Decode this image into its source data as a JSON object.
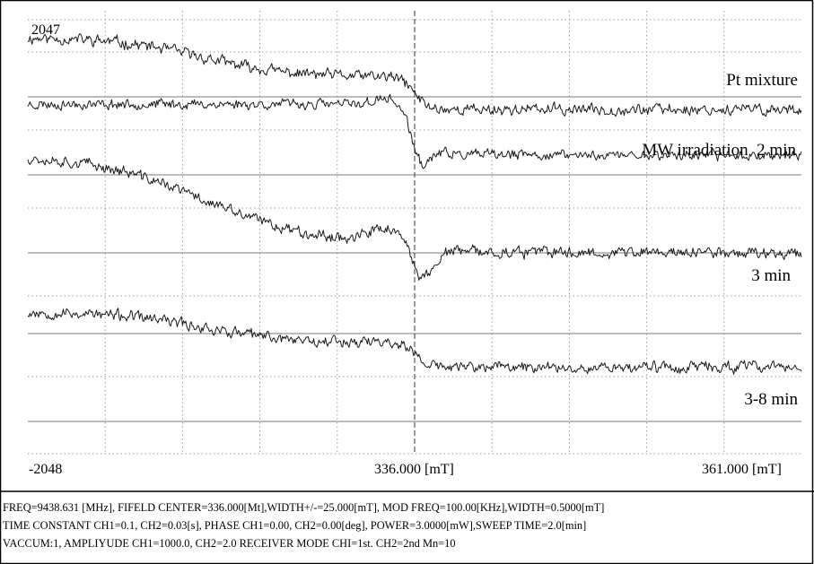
{
  "chart_data": {
    "type": "line",
    "title": "",
    "xlabel": "",
    "ylabel": "",
    "x_unit": "mT",
    "xlim": [
      311.0,
      361.0
    ],
    "center_line_x": 336.0,
    "y_scale": {
      "top_label": "2047",
      "bottom_label": "-2048",
      "top": 2047,
      "bottom": -2048
    },
    "x_tick_labels": {
      "center": "336.000 [mT]",
      "right": "361.000 [mT]"
    },
    "grid": true,
    "series": [
      {
        "name": "Pt mixture",
        "shape": "step_down",
        "noise": 0.35,
        "seed": 11,
        "y_start": 1880,
        "y_end": 1200
      },
      {
        "name": "MW irradiation  2 min",
        "shape": "dispersion",
        "noise": 0.3,
        "seed": 23,
        "y_start": 1250,
        "y_end": 770,
        "peak": 1330,
        "trough": 520
      },
      {
        "name": "3 min",
        "shape": "broad_dispersion",
        "noise": 0.35,
        "seed": 37,
        "y_start": 780,
        "y_end": -150,
        "peak": 60,
        "trough": -430,
        "dip": -70
      },
      {
        "name": "3-8 min",
        "shape": "step_down",
        "noise": 0.35,
        "seed": 53,
        "y_start": -710,
        "y_end": -1230
      }
    ]
  },
  "params": {
    "line1": "FREQ=9438.631  [MHz],  FIFELD  CENTER=336.000[Mt],WIDTH+/-=25.000[mT],  MOD  FREQ=100.00[KHz],WIDTH=0.5000[mT]",
    "line2": "TIME  CONSTANT  CH1=0.1,  CH2=0.03[s],  PHASE  CH1=0.00,  CH2=0.00[deg],  POWER=3.0000[mW],SWEEP  TIME=2.0[min]",
    "line3": "VACCUM:1, AMPLIYUDE CH1=1000.0, CH2=2.0 RECEIVER MODE CHI=1st. CH2=2nd  Mn=10"
  }
}
